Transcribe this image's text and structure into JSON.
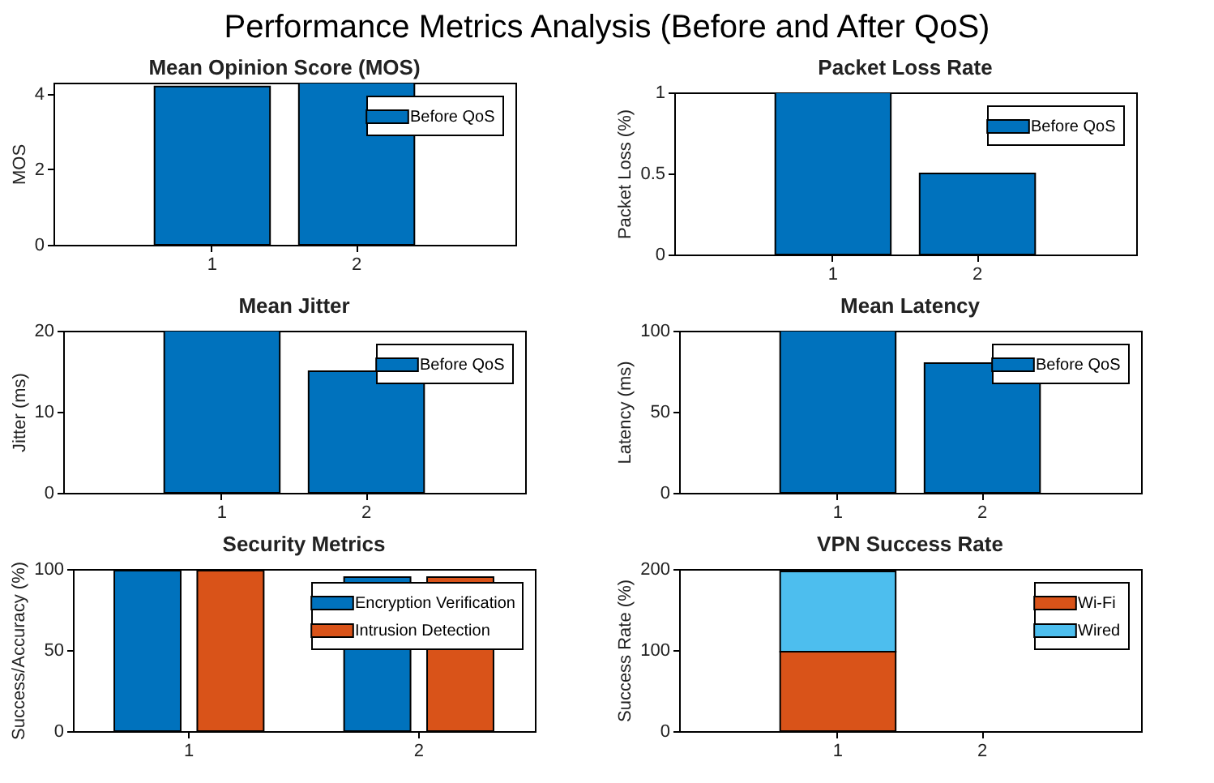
{
  "chart_data": [
    {
      "type": "other",
      "title": "Performance Metrics Analysis (Before and After QoS)"
    },
    {
      "type": "bar",
      "title": "Mean Opinion Score (MOS)",
      "ylabel": "MOS",
      "categories": [
        "1",
        "2"
      ],
      "ylim": [
        0,
        4.3
      ],
      "yticks": [
        0,
        2,
        4
      ],
      "legend": "top right",
      "series": [
        {
          "name": "Before QoS",
          "color": "#0072bd",
          "values": [
            4.2,
            4.3
          ]
        }
      ]
    },
    {
      "type": "bar",
      "title": "Packet Loss Rate",
      "ylabel": "Packet Loss (%)",
      "categories": [
        "1",
        "2"
      ],
      "ylim": [
        0,
        1
      ],
      "yticks": [
        0,
        0.5,
        1
      ],
      "legend": "top right",
      "series": [
        {
          "name": "Before QoS",
          "color": "#0072bd",
          "values": [
            1,
            0.5
          ]
        }
      ]
    },
    {
      "type": "bar",
      "title": "Mean Jitter",
      "ylabel": "Jitter (ms)",
      "categories": [
        "1",
        "2"
      ],
      "ylim": [
        0,
        20
      ],
      "yticks": [
        0,
        10,
        20
      ],
      "legend": "top right",
      "series": [
        {
          "name": "Before QoS",
          "color": "#0072bd",
          "values": [
            20,
            15
          ]
        }
      ]
    },
    {
      "type": "bar",
      "title": "Mean Latency",
      "ylabel": "Latency (ms)",
      "categories": [
        "1",
        "2"
      ],
      "ylim": [
        0,
        100
      ],
      "yticks": [
        0,
        50,
        100
      ],
      "legend": "top right",
      "series": [
        {
          "name": "Before QoS",
          "color": "#0072bd",
          "values": [
            100,
            80
          ]
        }
      ]
    },
    {
      "type": "bar",
      "title": "Security Metrics",
      "ylabel": "Success/Accuracy (%)",
      "categories": [
        "1",
        "2"
      ],
      "ylim": [
        0,
        100
      ],
      "yticks": [
        0,
        50,
        100
      ],
      "legend": "top right",
      "series": [
        {
          "name": "Encryption Verification",
          "color": "#0072bd",
          "values": [
            99,
            95
          ]
        },
        {
          "name": "Intrusion Detection",
          "color": "#d95319",
          "values": [
            99,
            95
          ]
        }
      ]
    },
    {
      "type": "bar",
      "title": "VPN Success Rate",
      "ylabel": "Success Rate (%)",
      "categories": [
        "1",
        "2"
      ],
      "ylim": [
        0,
        200
      ],
      "yticks": [
        0,
        100,
        200
      ],
      "legend": "top right",
      "stacked": true,
      "series": [
        {
          "name": "Wi-Fi",
          "color": "#d95319",
          "values": [
            98,
            null
          ]
        },
        {
          "name": "Wired",
          "color": "#4dbeee",
          "values": [
            99,
            null
          ]
        }
      ]
    }
  ]
}
